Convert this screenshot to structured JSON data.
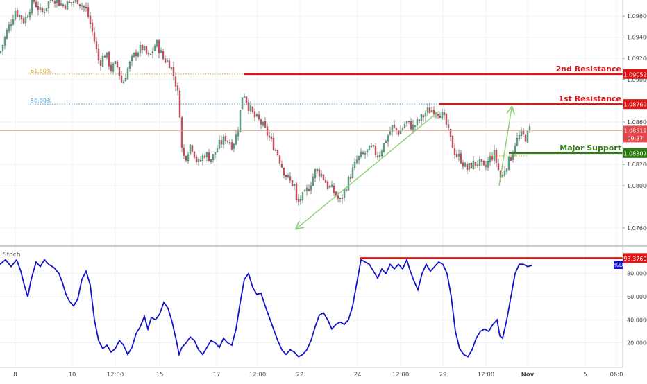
{
  "chart_data": [
    {
      "type": "candlestick",
      "panel": "price",
      "ylim": [
        1.0745,
        1.0975
      ],
      "y_ticks": [
        "1.09600",
        "1.09400",
        "1.09200",
        "1.09000",
        "1.08600",
        "1.08200",
        "1.08000",
        "1.07600"
      ],
      "price_path": [
        [
          0,
          1.0925
        ],
        [
          10,
          1.0945
        ],
        [
          22,
          1.0965
        ],
        [
          35,
          1.0955
        ],
        [
          48,
          1.0975
        ],
        [
          60,
          1.0962
        ],
        [
          75,
          1.0978
        ],
        [
          90,
          1.097
        ],
        [
          100,
          1.0972
        ],
        [
          112,
          1.0975
        ],
        [
          125,
          1.0965
        ],
        [
          135,
          1.094
        ],
        [
          143,
          1.0915
        ],
        [
          152,
          1.0925
        ],
        [
          160,
          1.091
        ],
        [
          168,
          1.0915
        ],
        [
          176,
          1.0895
        ],
        [
          185,
          1.0912
        ],
        [
          195,
          1.0925
        ],
        [
          205,
          1.093
        ],
        [
          215,
          1.092
        ],
        [
          225,
          1.0935
        ],
        [
          235,
          1.092
        ],
        [
          245,
          1.0915
        ],
        [
          252,
          1.09
        ],
        [
          258,
          1.088
        ],
        [
          262,
          1.0835
        ],
        [
          266,
          1.0825
        ],
        [
          275,
          1.084
        ],
        [
          285,
          1.082
        ],
        [
          295,
          1.083
        ],
        [
          305,
          1.0825
        ],
        [
          315,
          1.0838
        ],
        [
          325,
          1.0845
        ],
        [
          335,
          1.0838
        ],
        [
          342,
          1.085
        ],
        [
          350,
          1.089
        ],
        [
          358,
          1.0875
        ],
        [
          366,
          1.0865
        ],
        [
          375,
          1.086
        ],
        [
          384,
          1.085
        ],
        [
          392,
          1.084
        ],
        [
          400,
          1.083
        ],
        [
          408,
          1.0815
        ],
        [
          416,
          1.0805
        ],
        [
          424,
          1.08
        ],
        [
          428,
          1.078
        ],
        [
          432,
          1.0788
        ],
        [
          438,
          1.079
        ],
        [
          446,
          1.08
        ],
        [
          455,
          1.0815
        ],
        [
          464,
          1.081
        ],
        [
          472,
          1.08
        ],
        [
          480,
          1.0795
        ],
        [
          490,
          1.0785
        ],
        [
          496,
          1.0795
        ],
        [
          505,
          1.081
        ],
        [
          515,
          1.0825
        ],
        [
          525,
          1.083
        ],
        [
          535,
          1.0835
        ],
        [
          545,
          1.0828
        ],
        [
          555,
          1.0842
        ],
        [
          565,
          1.0855
        ],
        [
          575,
          1.085
        ],
        [
          585,
          1.086
        ],
        [
          595,
          1.0855
        ],
        [
          605,
          1.0862
        ],
        [
          615,
          1.087
        ],
        [
          625,
          1.0872
        ],
        [
          635,
          1.0868
        ],
        [
          642,
          1.086
        ],
        [
          648,
          1.0845
        ],
        [
          656,
          1.083
        ],
        [
          664,
          1.0825
        ],
        [
          672,
          1.0815
        ],
        [
          680,
          1.082
        ],
        [
          690,
          1.0822
        ],
        [
          698,
          1.0815
        ],
        [
          705,
          1.0825
        ],
        [
          712,
          1.083
        ],
        [
          718,
          1.0815
        ],
        [
          722,
          1.0805
        ],
        [
          728,
          1.0818
        ],
        [
          735,
          1.0825
        ],
        [
          742,
          1.084
        ],
        [
          750,
          1.0848
        ],
        [
          758,
          1.0845
        ],
        [
          764,
          1.0855
        ]
      ],
      "current_price_line": 1.08519,
      "fibonacci": [
        {
          "label": "61.80%",
          "price": 1.09052
        },
        {
          "label": "50.00%",
          "price": 1.08769
        }
      ],
      "levels": [
        {
          "name": "2nd Resistance",
          "price": 1.09052,
          "tag": "1.09052",
          "color": "#e01515"
        },
        {
          "name": "1st Resistance",
          "price": 1.08769,
          "tag": "1.08769",
          "color": "#e01515"
        },
        {
          "name": "Major Support",
          "price": 1.08307,
          "tag": "1.08307",
          "color": "#2f7d12"
        }
      ],
      "price_tag": {
        "value": "1.08519",
        "countdown": "09:37",
        "color": "#e3474b"
      },
      "arrows": [
        {
          "from": [
            632,
            1.087
          ],
          "to": [
            428,
            1.076
          ]
        },
        {
          "from": [
            719,
            1.08
          ],
          "to": [
            737,
            1.0873
          ]
        }
      ]
    },
    {
      "type": "line",
      "panel": "stochastic",
      "name": "%D",
      "ylim": [
        0,
        102
      ],
      "y_ticks": [
        "80.0000",
        "60.0000",
        "40.0000",
        "20.0000"
      ],
      "series_color": "#1212c8",
      "points": [
        [
          0,
          88
        ],
        [
          8,
          92
        ],
        [
          16,
          86
        ],
        [
          24,
          92
        ],
        [
          30,
          82
        ],
        [
          35,
          70
        ],
        [
          40,
          60
        ],
        [
          45,
          75
        ],
        [
          52,
          90
        ],
        [
          58,
          86
        ],
        [
          64,
          92
        ],
        [
          70,
          88
        ],
        [
          78,
          85
        ],
        [
          85,
          80
        ],
        [
          90,
          72
        ],
        [
          95,
          62
        ],
        [
          100,
          56
        ],
        [
          106,
          52
        ],
        [
          112,
          58
        ],
        [
          118,
          75
        ],
        [
          124,
          82
        ],
        [
          130,
          70
        ],
        [
          136,
          40
        ],
        [
          142,
          22
        ],
        [
          148,
          15
        ],
        [
          154,
          18
        ],
        [
          160,
          12
        ],
        [
          166,
          15
        ],
        [
          172,
          22
        ],
        [
          178,
          18
        ],
        [
          184,
          10
        ],
        [
          190,
          16
        ],
        [
          196,
          28
        ],
        [
          202,
          34
        ],
        [
          208,
          43
        ],
        [
          213,
          32
        ],
        [
          218,
          42
        ],
        [
          224,
          40
        ],
        [
          230,
          45
        ],
        [
          236,
          55
        ],
        [
          242,
          50
        ],
        [
          248,
          38
        ],
        [
          254,
          22
        ],
        [
          258,
          10
        ],
        [
          262,
          16
        ],
        [
          268,
          20
        ],
        [
          274,
          25
        ],
        [
          280,
          22
        ],
        [
          286,
          14
        ],
        [
          292,
          10
        ],
        [
          298,
          16
        ],
        [
          304,
          22
        ],
        [
          310,
          20
        ],
        [
          316,
          16
        ],
        [
          322,
          24
        ],
        [
          328,
          20
        ],
        [
          334,
          18
        ],
        [
          340,
          32
        ],
        [
          346,
          55
        ],
        [
          352,
          75
        ],
        [
          358,
          80
        ],
        [
          364,
          68
        ],
        [
          370,
          62
        ],
        [
          376,
          63
        ],
        [
          382,
          52
        ],
        [
          388,
          42
        ],
        [
          394,
          32
        ],
        [
          400,
          22
        ],
        [
          406,
          14
        ],
        [
          412,
          10
        ],
        [
          418,
          14
        ],
        [
          424,
          12
        ],
        [
          430,
          8
        ],
        [
          436,
          10
        ],
        [
          442,
          14
        ],
        [
          448,
          22
        ],
        [
          454,
          34
        ],
        [
          460,
          44
        ],
        [
          466,
          46
        ],
        [
          472,
          40
        ],
        [
          478,
          32
        ],
        [
          484,
          36
        ],
        [
          490,
          38
        ],
        [
          496,
          36
        ],
        [
          502,
          40
        ],
        [
          508,
          52
        ],
        [
          514,
          72
        ],
        [
          520,
          92
        ],
        [
          526,
          90
        ],
        [
          532,
          88
        ],
        [
          538,
          82
        ],
        [
          544,
          76
        ],
        [
          550,
          84
        ],
        [
          556,
          80
        ],
        [
          562,
          88
        ],
        [
          568,
          84
        ],
        [
          574,
          88
        ],
        [
          580,
          84
        ],
        [
          586,
          92
        ],
        [
          590,
          84
        ],
        [
          596,
          74
        ],
        [
          602,
          66
        ],
        [
          608,
          80
        ],
        [
          614,
          88
        ],
        [
          620,
          82
        ],
        [
          626,
          86
        ],
        [
          632,
          90
        ],
        [
          638,
          88
        ],
        [
          644,
          80
        ],
        [
          650,
          60
        ],
        [
          656,
          30
        ],
        [
          662,
          15
        ],
        [
          668,
          10
        ],
        [
          674,
          8
        ],
        [
          680,
          14
        ],
        [
          686,
          24
        ],
        [
          692,
          30
        ],
        [
          698,
          32
        ],
        [
          704,
          30
        ],
        [
          710,
          36
        ],
        [
          716,
          40
        ],
        [
          720,
          26
        ],
        [
          724,
          24
        ],
        [
          730,
          40
        ],
        [
          736,
          60
        ],
        [
          742,
          80
        ],
        [
          748,
          88
        ],
        [
          754,
          88
        ],
        [
          760,
          86
        ],
        [
          766,
          87
        ]
      ],
      "max_line": {
        "value": 93.376,
        "tag": "93.3760"
      },
      "legend_tag": "%D",
      "label": "Stoch"
    }
  ],
  "x_axis": {
    "labels": [
      {
        "text": "8",
        "x": 22
      },
      {
        "text": "10",
        "x": 104
      },
      {
        "text": "12:00",
        "x": 166
      },
      {
        "text": "15",
        "x": 230
      },
      {
        "text": "17",
        "x": 312
      },
      {
        "text": "12:00",
        "x": 371
      },
      {
        "text": "22",
        "x": 432
      },
      {
        "text": "24",
        "x": 515
      },
      {
        "text": "12:00",
        "x": 577
      },
      {
        "text": "29",
        "x": 638
      },
      {
        "text": "12:00",
        "x": 700
      },
      {
        "text": "Nov",
        "x": 760,
        "bold": true
      },
      {
        "text": "5",
        "x": 843
      },
      {
        "text": "06:0",
        "x": 888
      }
    ]
  },
  "colors": {
    "up_candle": "#53b987",
    "down_candle": "#eb4d5c",
    "grid": "#eef0f4",
    "axis_text": "#4a4a4a",
    "fib_61": "#e0a020",
    "fib_50": "#4aa3df",
    "arrow": "#8fd07a",
    "price_line": "#f0a090"
  }
}
